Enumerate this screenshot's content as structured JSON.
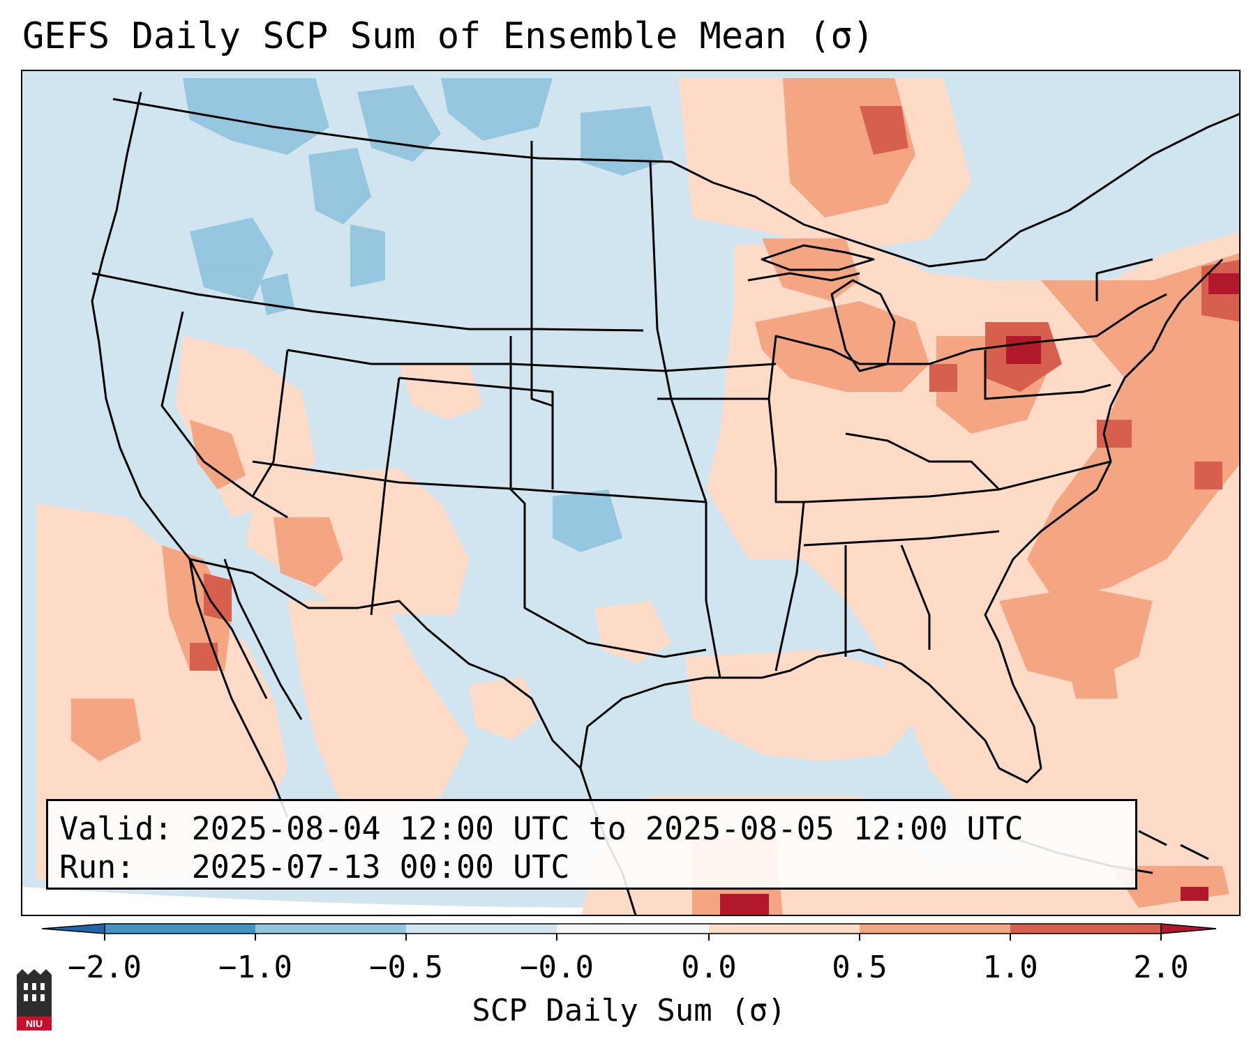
{
  "title": "GEFS Daily SCP Sum of Ensemble Mean (σ)",
  "info": {
    "valid_line": "Valid: 2025-08-04 12:00 UTC to 2025-08-05 12:00 UTC",
    "run_line": "Run:   2025-07-13 00:00 UTC"
  },
  "colorbar": {
    "label": "SCP Daily Sum (σ)",
    "ticks": [
      "−2.0",
      "−1.0",
      "−0.5",
      "−0.0",
      "0.0",
      "0.5",
      "1.0",
      "2.0"
    ],
    "colors": [
      "#4393c3",
      "#92c5de",
      "#d1e5f0",
      "#f7f7f7",
      "#fddbc7",
      "#f4a582",
      "#d6604d"
    ],
    "extend_low_color": "#2166ac",
    "extend_high_color": "#b2182b"
  },
  "map_colors": {
    "neutral_blue": "#d1e5f0",
    "light_red": "#fddbc7",
    "mid_red": "#f4a582",
    "strong_red": "#d6604d",
    "max_red": "#b2182b",
    "mid_blue": "#92c5de",
    "outside": "#ffffff"
  },
  "logo": {
    "text": "NIU"
  }
}
